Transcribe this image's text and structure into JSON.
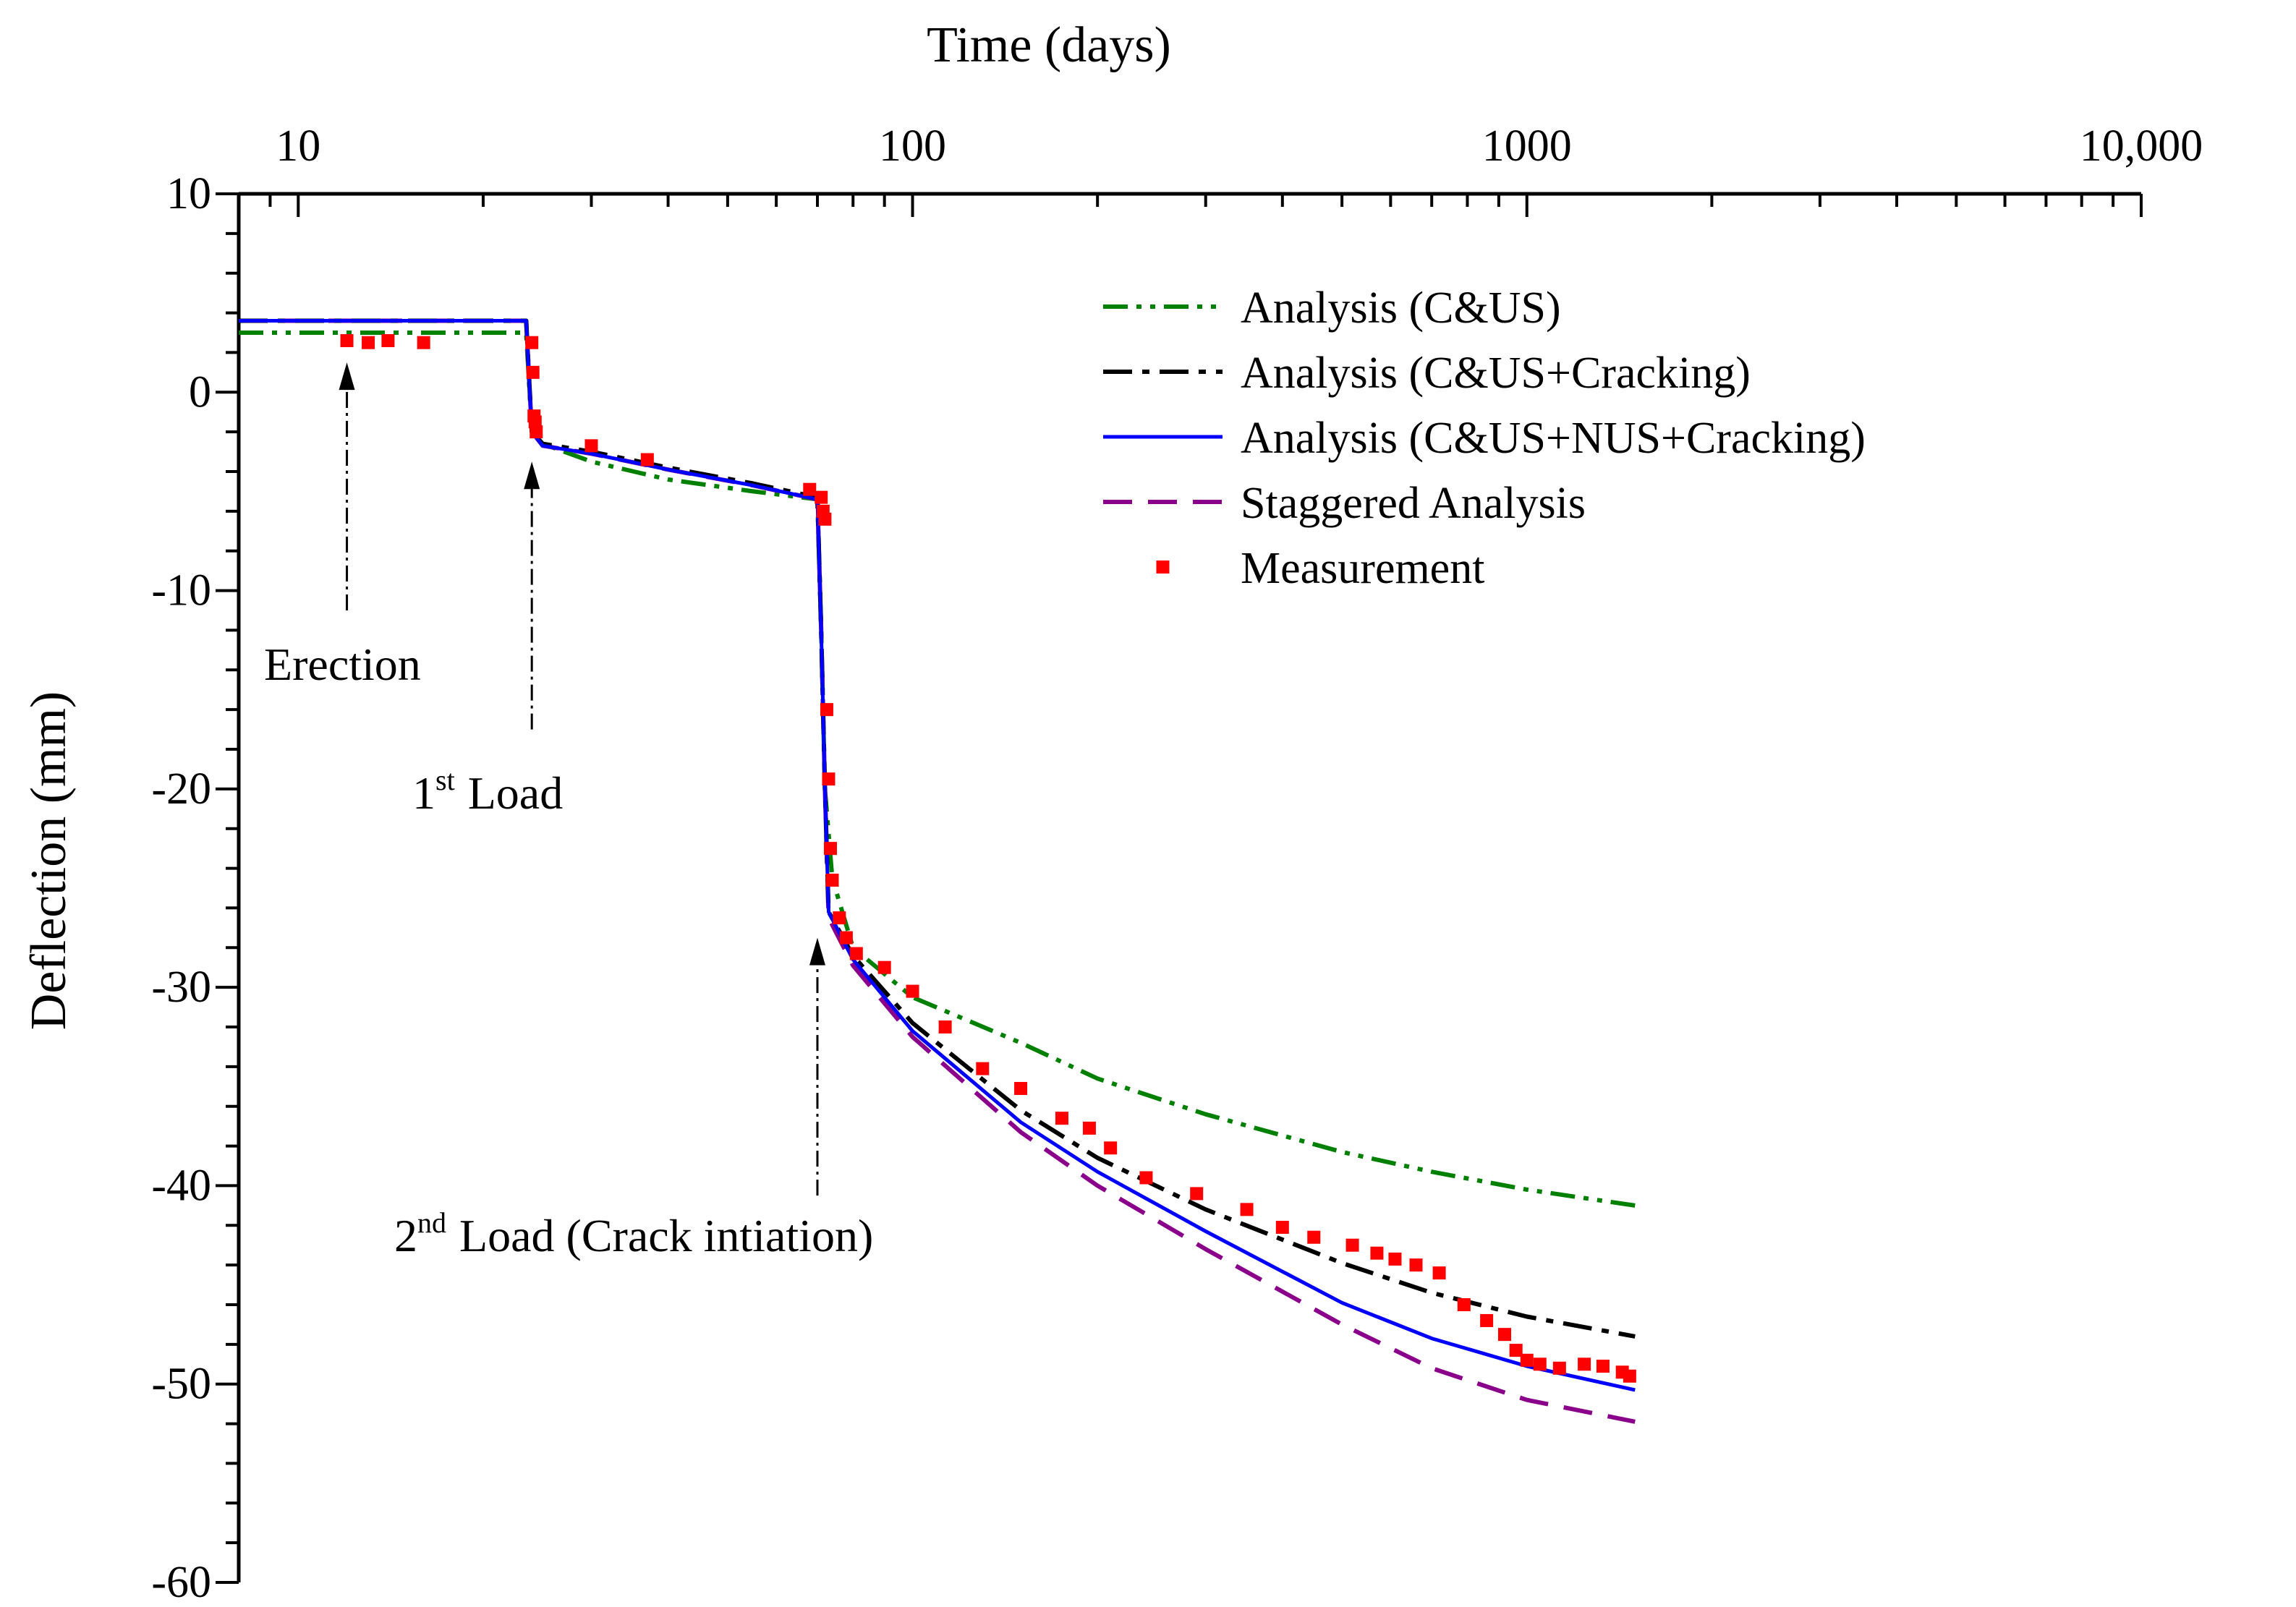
{
  "chart_data": {
    "type": "line",
    "x_scale": "log",
    "xlabel": "Time (days)",
    "ylabel": "Deflection (mm)",
    "xlim": [
      8,
      10000
    ],
    "ylim": [
      -60,
      10
    ],
    "x_ticks": [
      {
        "value": 10,
        "label": "10"
      },
      {
        "value": 100,
        "label": "100"
      },
      {
        "value": 1000,
        "label": "1000"
      },
      {
        "value": 10000,
        "label": "10,000"
      }
    ],
    "y_ticks": [
      {
        "value": 10,
        "label": "10"
      },
      {
        "value": 0,
        "label": "0"
      },
      {
        "value": -10,
        "label": "-10"
      },
      {
        "value": -20,
        "label": "-20"
      },
      {
        "value": -30,
        "label": "-30"
      },
      {
        "value": -40,
        "label": "-40"
      },
      {
        "value": -50,
        "label": "-50"
      },
      {
        "value": -60,
        "label": "-60"
      }
    ],
    "series": [
      {
        "name": "Analysis (C&US)",
        "color": "#008000",
        "dash": "dashdotdot",
        "x": [
          8,
          23.5,
          24,
          25,
          30,
          40,
          55,
          70,
          71,
          72,
          74,
          80,
          100,
          150,
          200,
          300,
          500,
          700,
          1000,
          1500
        ],
        "y": [
          3.0,
          3.0,
          -2.0,
          -2.6,
          -3.5,
          -4.4,
          -5.0,
          -5.4,
          -12,
          -20,
          -24.5,
          -28,
          -30.5,
          -32.8,
          -34.6,
          -36.4,
          -38.3,
          -39.3,
          -40.2,
          -41.0
        ]
      },
      {
        "name": "Analysis (C&US+Cracking)",
        "color": "#000000",
        "dash": "dashdot",
        "x": [
          8,
          23.5,
          24,
          25,
          30,
          40,
          55,
          70,
          71,
          72,
          73,
          80,
          100,
          150,
          200,
          300,
          500,
          700,
          1000,
          1500
        ],
        "y": [
          3.6,
          3.6,
          -2.0,
          -2.6,
          -3.0,
          -3.8,
          -4.6,
          -5.3,
          -12,
          -20,
          -26.2,
          -28.4,
          -31.8,
          -36.2,
          -38.6,
          -41.2,
          -43.9,
          -45.4,
          -46.6,
          -47.6
        ]
      },
      {
        "name": "Analysis (C&US+NUS+Cracking)",
        "color": "#0000ff",
        "dash": "solid",
        "x": [
          8,
          23.5,
          24,
          25,
          30,
          40,
          55,
          70,
          71,
          72,
          73,
          80,
          100,
          150,
          200,
          300,
          500,
          700,
          1000,
          1500
        ],
        "y": [
          3.6,
          3.6,
          -2.0,
          -2.7,
          -3.1,
          -3.9,
          -4.7,
          -5.4,
          -12,
          -20,
          -26.2,
          -28.6,
          -32.2,
          -36.8,
          -39.3,
          -42.3,
          -45.9,
          -47.7,
          -49.1,
          -50.3
        ]
      },
      {
        "name": "Staggered Analysis",
        "color": "#8b008b",
        "dash": "dashed",
        "x": [
          8,
          23.5,
          24,
          25,
          30,
          40,
          55,
          70,
          71,
          72,
          73,
          80,
          100,
          150,
          200,
          300,
          500,
          700,
          1000,
          1500
        ],
        "y": [
          3.6,
          3.6,
          -2.0,
          -2.7,
          -3.1,
          -3.9,
          -4.7,
          -5.4,
          -12,
          -20,
          -26.5,
          -28.9,
          -32.5,
          -37.3,
          -40.0,
          -43.2,
          -47.0,
          -49.2,
          -50.8,
          -51.9
        ]
      },
      {
        "name": "Measurement",
        "color": "#ff0000",
        "dash": "markers",
        "x": [
          12,
          13,
          14,
          16,
          24,
          24.1,
          24.2,
          24.3,
          24.4,
          30,
          37,
          68,
          71,
          71.5,
          72,
          72.5,
          73,
          73.5,
          74,
          76,
          78,
          81,
          90,
          100,
          113,
          130,
          150,
          175,
          194,
          210,
          240,
          290,
          350,
          400,
          450,
          520,
          570,
          610,
          660,
          720,
          790,
          860,
          920,
          960,
          1000,
          1050,
          1130,
          1240,
          1330,
          1430,
          1470
        ],
        "y": [
          2.6,
          2.5,
          2.6,
          2.5,
          2.5,
          1.0,
          -1.2,
          -1.5,
          -2.0,
          -2.7,
          -3.4,
          -4.9,
          -5.3,
          -6.0,
          -6.4,
          -16.0,
          -19.5,
          -23.0,
          -24.6,
          -26.5,
          -27.5,
          -28.3,
          -29.0,
          -30.2,
          -32.0,
          -34.1,
          -35.1,
          -36.6,
          -37.1,
          -38.1,
          -39.6,
          -40.4,
          -41.2,
          -42.1,
          -42.6,
          -43.0,
          -43.4,
          -43.7,
          -44.0,
          -44.4,
          -46.0,
          -46.8,
          -47.5,
          -48.3,
          -48.8,
          -49.0,
          -49.2,
          -49.0,
          -49.1,
          -49.4,
          -49.6
        ]
      }
    ],
    "annotations": [
      {
        "id": "erection",
        "text": "Erection",
        "x": 12,
        "y_from": -11,
        "y_to": 1.5
      },
      {
        "id": "load1",
        "text": "Load",
        "sup_prefix": "1",
        "sup": "st",
        "x": 24,
        "y_from": -17,
        "y_to": -3.5
      },
      {
        "id": "load2",
        "text": "Load (Crack intiation)",
        "sup_prefix": "2",
        "sup": "nd",
        "x": 70,
        "y_from": -40.5,
        "y_to": -27.5
      }
    ],
    "legend_position": "top-right"
  }
}
